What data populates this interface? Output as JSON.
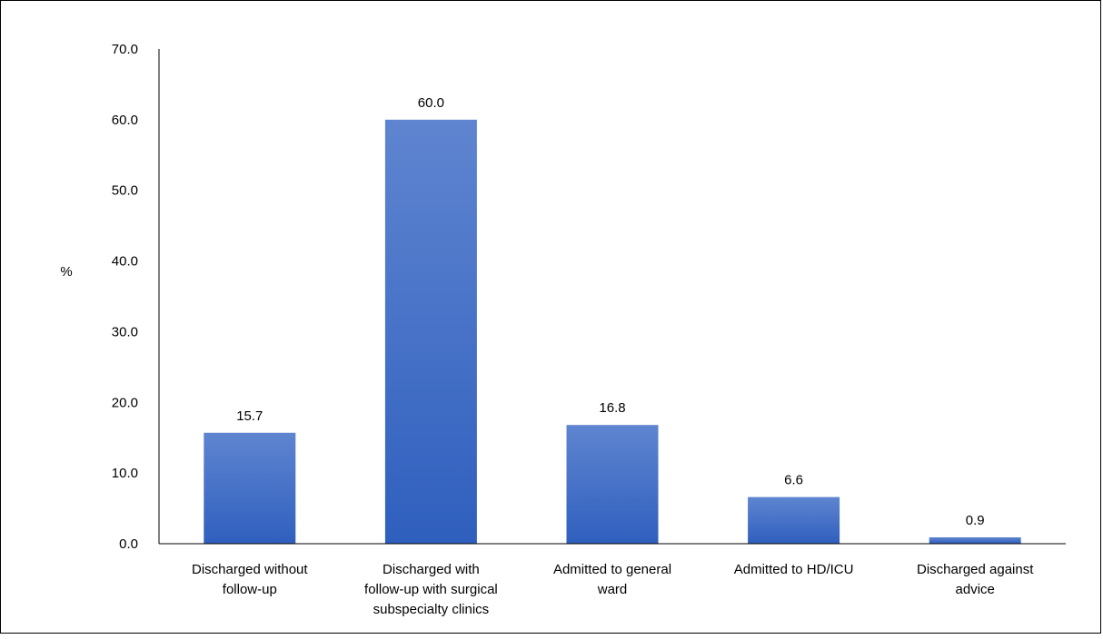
{
  "chart_data": {
    "type": "bar",
    "categories": [
      [
        "Discharged without",
        "follow-up"
      ],
      [
        "Discharged with",
        "follow-up with surgical",
        "subspecialty clinics"
      ],
      [
        "Admitted to general",
        "ward"
      ],
      [
        "Admitted to HD/ICU"
      ],
      [
        "Discharged against",
        "advice"
      ]
    ],
    "values": [
      15.7,
      60.0,
      16.8,
      6.6,
      0.9
    ],
    "value_labels": [
      "15.7",
      "60.0",
      "16.8",
      "6.6",
      "0.9"
    ],
    "ylabel": "%",
    "ylim": [
      0,
      70
    ],
    "yticks": [
      "0.0",
      "10.0",
      "20.0",
      "30.0",
      "40.0",
      "50.0",
      "60.0",
      "70.0"
    ],
    "grid": false,
    "bar_color_top": "#5f85d0",
    "bar_color_bottom": "#2f5fbe",
    "axis_color": "#000000"
  }
}
